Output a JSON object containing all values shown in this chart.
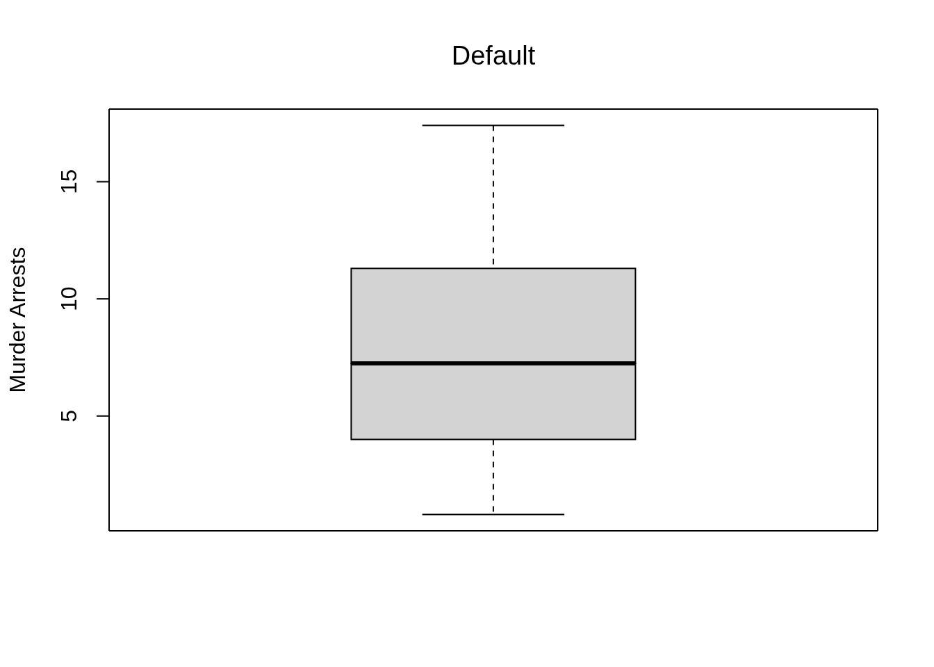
{
  "chart_data": {
    "type": "box",
    "title": "Default",
    "ylabel": "Murder Arrests",
    "categories": [
      null
    ],
    "boxes": [
      {
        "low": 0.8,
        "q1": 4,
        "median": 7.25,
        "q3": 11.3,
        "high": 17.4
      }
    ],
    "color": "#d3d3d3",
    "line_style": "dashed",
    "ylim": [
      0.1,
      18.1
    ],
    "yticks": [
      5,
      10,
      15
    ]
  }
}
